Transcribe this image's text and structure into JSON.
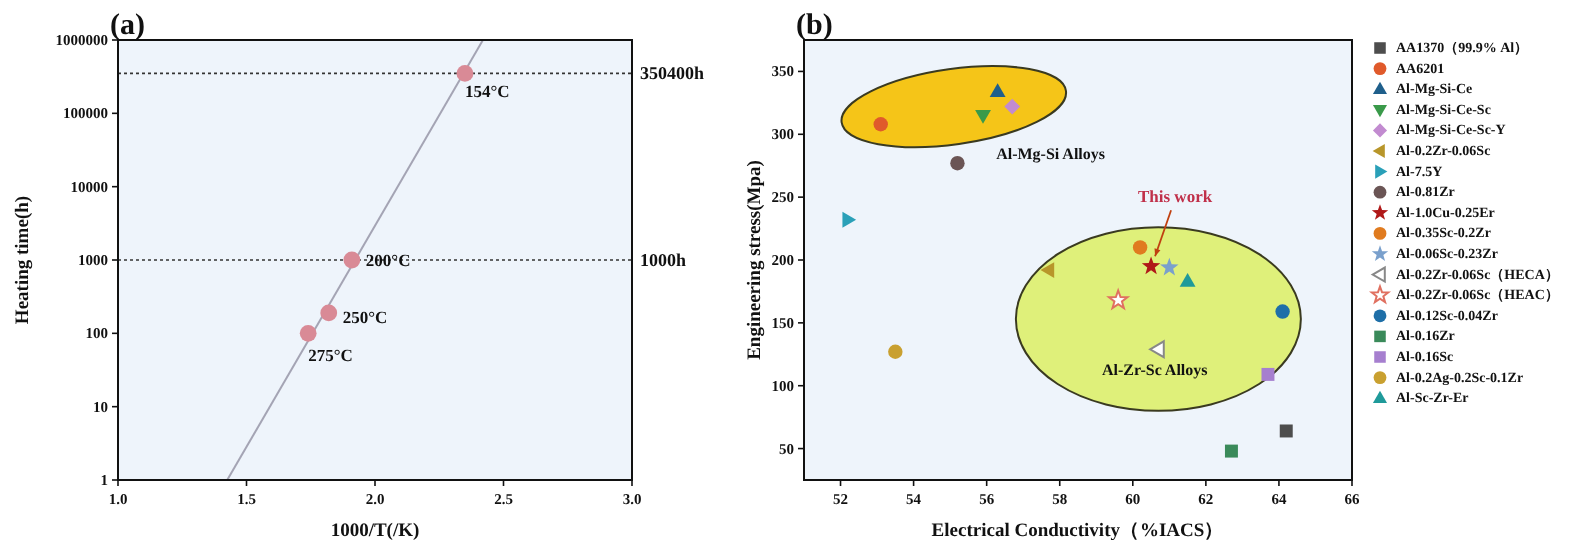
{
  "chart_data": [
    {
      "type": "scatter",
      "title": "(a)",
      "xlabel": "1000/T(/K)",
      "ylabel": "Heating time(h)",
      "log": "y",
      "xlim": [
        1.0,
        3.0
      ],
      "xticks": [
        {
          "value": 1.0,
          "label": "1.0"
        },
        {
          "value": 1.5,
          "label": "1.5"
        },
        {
          "value": 2.0,
          "label": "2.0"
        },
        {
          "value": 2.5,
          "label": "2.5"
        },
        {
          "value": 3.0,
          "label": "3.0"
        }
      ],
      "ylim": [
        1,
        1000000
      ],
      "yticks": [
        1,
        10,
        100,
        1000,
        10000,
        100000,
        1000000
      ],
      "grid": false,
      "series": [
        {
          "type": "line",
          "color": "#a4a4b4",
          "x": [
            1.425,
            2.42
          ],
          "values": [
            1,
            1000000
          ],
          "marker": "none"
        },
        {
          "type": "scatter",
          "color": "#d98a96",
          "x": [
            1.74,
            1.82,
            1.91,
            2.35
          ],
          "values": [
            100,
            190,
            1000,
            350400
          ],
          "marker": "circle"
        }
      ],
      "ref_lines": [
        {
          "axis": "y",
          "value": 350400,
          "label": "350400h",
          "line_style": "dotted",
          "color": "#333333"
        },
        {
          "axis": "y",
          "value": 1000,
          "label": "1000h",
          "line_style": "dotted",
          "color": "#333333"
        }
      ],
      "annotations": [
        {
          "text": "154°C",
          "x": 2.35,
          "y": 350400
        },
        {
          "text": "200°C",
          "x": 1.91,
          "y": 1000
        },
        {
          "text": "250°C",
          "x": 1.82,
          "y": 190
        },
        {
          "text": "275°C",
          "x": 1.74,
          "y": 100
        }
      ]
    },
    {
      "type": "scatter",
      "title": "(b)",
      "xlabel": "Electrical Conductivity（%IACS）",
      "ylabel": "Engineering stress(Mpa)",
      "xlim": [
        51,
        66
      ],
      "xticks": [
        52,
        54,
        56,
        58,
        60,
        62,
        64,
        66
      ],
      "ylim": [
        25,
        375
      ],
      "yticks": [
        50,
        100,
        150,
        200,
        250,
        300,
        350
      ],
      "grid": false,
      "legend": "right",
      "series": [
        {
          "name": "AA1370（99.9% Al）",
          "color": "#4d4d4d",
          "x": [
            64.2
          ],
          "values": [
            64
          ],
          "marker": "square"
        },
        {
          "name": "AA6201",
          "color": "#e05a2b",
          "x": [
            53.1
          ],
          "values": [
            308
          ],
          "marker": "circle"
        },
        {
          "name": "Al-Mg-Si-Ce",
          "color": "#1f5f8b",
          "x": [
            56.3
          ],
          "values": [
            334
          ],
          "marker": "triangle"
        },
        {
          "name": "Al-Mg-Si-Ce-Sc",
          "color": "#3a9a4a",
          "x": [
            55.9
          ],
          "values": [
            315
          ],
          "marker": "triangle-down"
        },
        {
          "name": "Al-Mg-Si-Ce-Sc-Y",
          "color": "#c28bd0",
          "x": [
            56.7
          ],
          "values": [
            322
          ],
          "marker": "diamond"
        },
        {
          "name": "Al-0.2Zr-0.06Sc",
          "color": "#b8962a",
          "x": [
            57.7
          ],
          "values": [
            192
          ],
          "marker": "triangle-left"
        },
        {
          "name": "Al-7.5Y",
          "color": "#2aa0b8",
          "x": [
            52.2
          ],
          "values": [
            232
          ],
          "marker": "triangle-right"
        },
        {
          "name": "Al-0.81Zr",
          "color": "#6b5555",
          "x": [
            55.2
          ],
          "values": [
            277
          ],
          "marker": "circle"
        },
        {
          "name": "Al-1.0Cu-0.25Er",
          "color": "#b01818",
          "x": [
            60.5
          ],
          "values": [
            195
          ],
          "marker": "star"
        },
        {
          "name": "Al-0.35Sc-0.2Zr",
          "color": "#e07b1f",
          "x": [
            60.2
          ],
          "values": [
            210
          ],
          "marker": "circle"
        },
        {
          "name": "Al-0.06Sc-0.23Zr",
          "color": "#7aa0cc",
          "x": [
            61.0
          ],
          "values": [
            194
          ],
          "marker": "star"
        },
        {
          "name": "Al-0.2Zr-0.06Sc（HECA）",
          "color": "#888888",
          "x": [
            60.7
          ],
          "values": [
            129
          ],
          "marker": "triangle-left-open"
        },
        {
          "name": "Al-0.2Zr-0.06Sc（HEAC）",
          "color": "#e07060",
          "x": [
            59.6
          ],
          "values": [
            168
          ],
          "marker": "star-open"
        },
        {
          "name": "Al-0.12Sc-0.04Zr",
          "color": "#1f6fa8",
          "x": [
            64.1
          ],
          "values": [
            159
          ],
          "marker": "circle"
        },
        {
          "name": "Al-0.16Zr",
          "color": "#3a8a5a",
          "x": [
            62.7
          ],
          "values": [
            48
          ],
          "marker": "square"
        },
        {
          "name": "Al-0.16Sc",
          "color": "#a67fcf",
          "x": [
            63.7
          ],
          "values": [
            109
          ],
          "marker": "square"
        },
        {
          "name": "Al-0.2Ag-0.2Sc-0.1Zr",
          "color": "#c9a030",
          "x": [
            53.5
          ],
          "values": [
            127
          ],
          "marker": "circle"
        },
        {
          "name": "Al-Sc-Zr-Er",
          "color": "#1f9a9a",
          "x": [
            61.5
          ],
          "values": [
            183
          ],
          "marker": "triangle"
        }
      ],
      "annotations": [
        "Al-Mg-Si Alloys",
        {
          "text": "This work",
          "x": 60.5,
          "y": 195
        },
        "Al-Zr-Sc Alloys"
      ]
    }
  ]
}
